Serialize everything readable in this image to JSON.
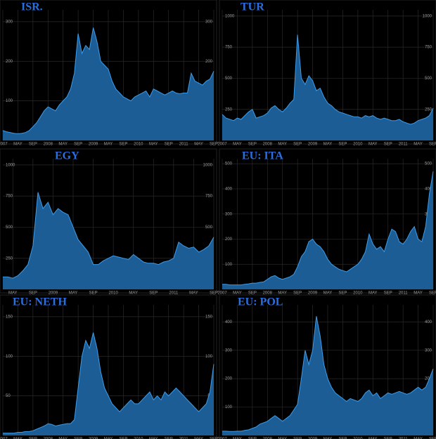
{
  "chart_data": [
    {
      "type": "area",
      "title": "ISR.",
      "color": "#3d9be9",
      "fill": "#1d5d96",
      "ylim": [
        0,
        330
      ],
      "yticks": [
        100,
        200,
        300
      ],
      "grid": true,
      "categories": [
        "2007",
        null,
        null,
        null,
        "MAY",
        null,
        null,
        null,
        "SEP",
        null,
        null,
        null,
        "2008",
        null,
        null,
        null,
        "MAY",
        null,
        null,
        null,
        "SEP",
        null,
        null,
        null,
        "2009",
        null,
        null,
        null,
        "MAY",
        null,
        null,
        null,
        "SEP",
        null,
        null,
        null,
        "2010",
        null,
        null,
        null,
        "MAY",
        null,
        null,
        null,
        "SEP",
        null,
        null,
        null,
        "2011",
        null,
        null,
        null,
        "MAY",
        null,
        null,
        null,
        "SEP"
      ],
      "values": [
        25,
        22,
        20,
        18,
        17,
        18,
        20,
        25,
        35,
        45,
        60,
        75,
        85,
        80,
        75,
        90,
        100,
        110,
        130,
        170,
        270,
        220,
        240,
        230,
        285,
        250,
        200,
        190,
        180,
        150,
        130,
        120,
        110,
        105,
        100,
        110,
        115,
        120,
        125,
        110,
        130,
        125,
        120,
        115,
        120,
        125,
        120,
        118,
        120,
        120,
        170,
        150,
        145,
        140,
        150,
        155,
        175
      ]
    },
    {
      "type": "area",
      "title": "TUR",
      "color": "#3d9be9",
      "fill": "#1d5d96",
      "ylim": [
        0,
        1050
      ],
      "yticks": [
        250,
        500,
        750,
        1000
      ],
      "grid": true,
      "categories": [
        "2007",
        null,
        null,
        null,
        "MAY",
        null,
        null,
        null,
        "SEP",
        null,
        null,
        null,
        "2008",
        null,
        null,
        null,
        "MAY",
        null,
        null,
        null,
        "SEP",
        null,
        null,
        null,
        "2009",
        null,
        null,
        null,
        "MAY",
        null,
        null,
        null,
        "SEP",
        null,
        null,
        null,
        "2010",
        null,
        null,
        null,
        "MAY",
        null,
        null,
        null,
        "SEP",
        null,
        null,
        null,
        "2011",
        null,
        null,
        null,
        "MAY",
        null,
        null,
        null,
        "SEP"
      ],
      "values": [
        210,
        180,
        170,
        160,
        180,
        170,
        200,
        230,
        250,
        180,
        190,
        200,
        220,
        260,
        280,
        250,
        230,
        260,
        300,
        330,
        850,
        500,
        450,
        520,
        480,
        400,
        420,
        350,
        300,
        280,
        250,
        230,
        220,
        210,
        200,
        190,
        190,
        180,
        200,
        190,
        200,
        180,
        170,
        180,
        170,
        160,
        160,
        170,
        150,
        140,
        130,
        140,
        160,
        170,
        180,
        200,
        260
      ]
    },
    {
      "type": "area",
      "title": "EGY",
      "color": "#3d9be9",
      "fill": "#1d5d96",
      "ylim": [
        0,
        1050
      ],
      "yticks": [
        250,
        500,
        750,
        1000
      ],
      "grid": true,
      "categories": [
        null,
        null,
        "MAY",
        null,
        null,
        null,
        "SEP",
        null,
        null,
        null,
        "2009",
        null,
        null,
        null,
        "MAY",
        null,
        null,
        null,
        "SEP",
        null,
        null,
        null,
        "2010",
        null,
        null,
        null,
        "MAY",
        null,
        null,
        null,
        "SEP",
        null,
        null,
        null,
        "2011",
        null,
        null,
        null,
        "MAY",
        null,
        null,
        null,
        "SEP"
      ],
      "values": [
        100,
        100,
        90,
        110,
        150,
        200,
        350,
        780,
        650,
        700,
        600,
        650,
        620,
        600,
        500,
        400,
        350,
        300,
        200,
        200,
        230,
        250,
        270,
        260,
        250,
        240,
        280,
        250,
        220,
        210,
        210,
        200,
        220,
        230,
        250,
        380,
        350,
        330,
        340,
        300,
        320,
        350,
        420
      ]
    },
    {
      "type": "area",
      "title": "EU: ITA",
      "color": "#3d9be9",
      "fill": "#1d5d96",
      "ylim": [
        0,
        520
      ],
      "yticks": [
        100,
        200,
        300,
        400,
        500
      ],
      "grid": true,
      "categories": [
        "2007",
        null,
        null,
        null,
        "MAY",
        null,
        null,
        null,
        "SEP",
        null,
        null,
        null,
        "2008",
        null,
        null,
        null,
        "MAY",
        null,
        null,
        null,
        "SEP",
        null,
        null,
        null,
        "2009",
        null,
        null,
        null,
        "MAY",
        null,
        null,
        null,
        "SEP",
        null,
        null,
        null,
        "2010",
        null,
        null,
        null,
        "MAY",
        null,
        null,
        null,
        "SEP",
        null,
        null,
        null,
        "2011",
        null,
        null,
        null,
        "MAY",
        null,
        null,
        null,
        "SEP"
      ],
      "values": [
        20,
        20,
        18,
        18,
        18,
        18,
        20,
        22,
        25,
        25,
        28,
        30,
        40,
        50,
        55,
        45,
        40,
        45,
        50,
        60,
        90,
        130,
        150,
        190,
        200,
        180,
        170,
        150,
        120,
        100,
        90,
        80,
        75,
        70,
        80,
        90,
        100,
        120,
        150,
        220,
        180,
        160,
        170,
        150,
        200,
        240,
        230,
        190,
        180,
        200,
        230,
        250,
        200,
        190,
        250,
        380,
        470
      ]
    },
    {
      "type": "area",
      "title": "EU: NETH",
      "color": "#3d9be9",
      "fill": "#1d5d96",
      "ylim": [
        0,
        165
      ],
      "yticks": [
        50,
        100,
        150
      ],
      "grid": true,
      "categories": [
        "2007",
        null,
        null,
        null,
        "MAY",
        null,
        null,
        null,
        "SEP",
        null,
        null,
        null,
        "2008",
        null,
        null,
        null,
        "MAY",
        null,
        null,
        null,
        "SEP",
        null,
        null,
        null,
        "2009",
        null,
        null,
        null,
        "MAY",
        null,
        null,
        null,
        "SEP",
        null,
        null,
        null,
        "2010",
        null,
        null,
        null,
        "MAY",
        null,
        null,
        null,
        "SEP",
        null,
        null,
        null,
        "2011",
        null,
        null,
        null,
        "MAY",
        null,
        null,
        null,
        "SEP"
      ],
      "values": [
        3,
        3,
        3,
        3,
        4,
        4,
        5,
        5,
        6,
        8,
        10,
        12,
        15,
        14,
        12,
        13,
        14,
        15,
        15,
        20,
        60,
        100,
        120,
        110,
        130,
        110,
        80,
        60,
        50,
        40,
        35,
        30,
        35,
        40,
        45,
        40,
        40,
        45,
        50,
        55,
        45,
        50,
        45,
        55,
        50,
        55,
        60,
        55,
        50,
        45,
        40,
        35,
        30,
        35,
        40,
        55,
        90
      ]
    },
    {
      "type": "area",
      "title": "EU: POL",
      "color": "#3d9be9",
      "fill": "#1d5d96",
      "ylim": [
        0,
        460
      ],
      "yticks": [
        100,
        200,
        300,
        400
      ],
      "grid": true,
      "categories": [
        "2007",
        null,
        null,
        null,
        "MAY",
        null,
        null,
        null,
        "SEP",
        null,
        null,
        null,
        "2008",
        null,
        null,
        null,
        "MAY",
        null,
        null,
        null,
        "SEP",
        null,
        null,
        null,
        "2009",
        null,
        null,
        null,
        "MAY",
        null,
        null,
        null,
        "SEP",
        null,
        null,
        null,
        "2010",
        null,
        null,
        null,
        "MAY",
        null,
        null,
        null,
        "SEP",
        null,
        null,
        null,
        "2011",
        null,
        null,
        null,
        "MAY",
        null,
        null,
        null,
        "SEP"
      ],
      "values": [
        15,
        15,
        14,
        14,
        15,
        15,
        18,
        20,
        25,
        30,
        40,
        45,
        50,
        60,
        70,
        60,
        50,
        60,
        70,
        90,
        110,
        200,
        300,
        250,
        300,
        420,
        350,
        250,
        200,
        170,
        150,
        140,
        130,
        120,
        130,
        125,
        120,
        130,
        150,
        160,
        140,
        150,
        130,
        140,
        150,
        145,
        150,
        155,
        150,
        145,
        150,
        160,
        170,
        160,
        170,
        200,
        235
      ]
    }
  ]
}
